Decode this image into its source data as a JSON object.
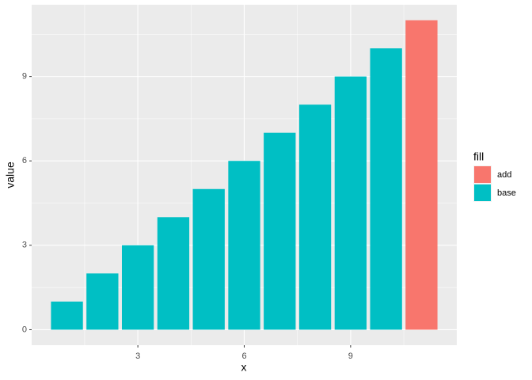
{
  "chart_data": {
    "type": "bar",
    "x_label": "x",
    "y_label": "value",
    "legend_title": "fill",
    "series": [
      {
        "name": "add",
        "color": "#F8766D",
        "x": [
          11
        ],
        "values": [
          11
        ]
      },
      {
        "name": "base",
        "color": "#00BFC4",
        "x": [
          1,
          2,
          3,
          4,
          5,
          6,
          7,
          8,
          9,
          10
        ],
        "values": [
          1,
          2,
          3,
          4,
          5,
          6,
          7,
          8,
          9,
          10
        ]
      }
    ],
    "xlim": [
      0.005,
      11.995
    ],
    "xticks": [
      3,
      6,
      9
    ],
    "ylim": [
      -0.55,
      11.55
    ],
    "yticks": [
      0,
      3,
      6,
      9
    ],
    "grid": true,
    "legend": "right"
  }
}
